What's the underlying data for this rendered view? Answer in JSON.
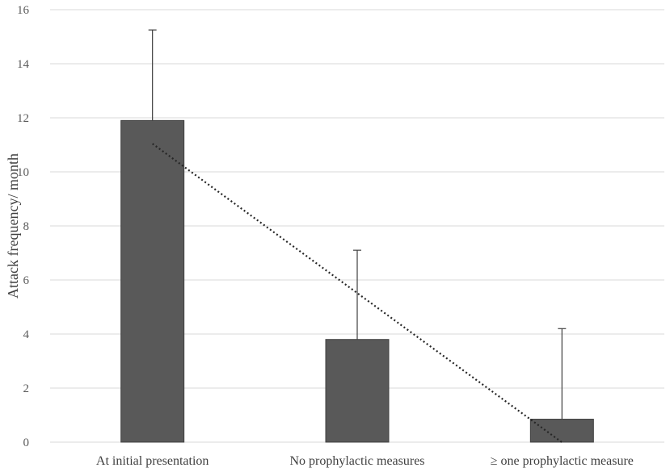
{
  "chart_data": {
    "type": "bar",
    "title": "",
    "xlabel": "",
    "ylabel": "Attack frequency/ month",
    "categories": [
      "At initial presentation",
      "No prophylactic measures",
      "≥ one prophylactic measure"
    ],
    "values": [
      11.9,
      3.8,
      0.85
    ],
    "error_upper": [
      15.25,
      7.1,
      4.2
    ],
    "ylim": [
      0,
      16
    ],
    "yticks": [
      "0",
      "2",
      "4",
      "6",
      "8",
      "10",
      "12",
      "14",
      "16"
    ],
    "grid": true,
    "trendline": "dotted linear",
    "colors": {
      "bar": "#595959",
      "bar_edge": "#404040",
      "grid": "#d9d9d9",
      "trendline": "#262626"
    }
  }
}
